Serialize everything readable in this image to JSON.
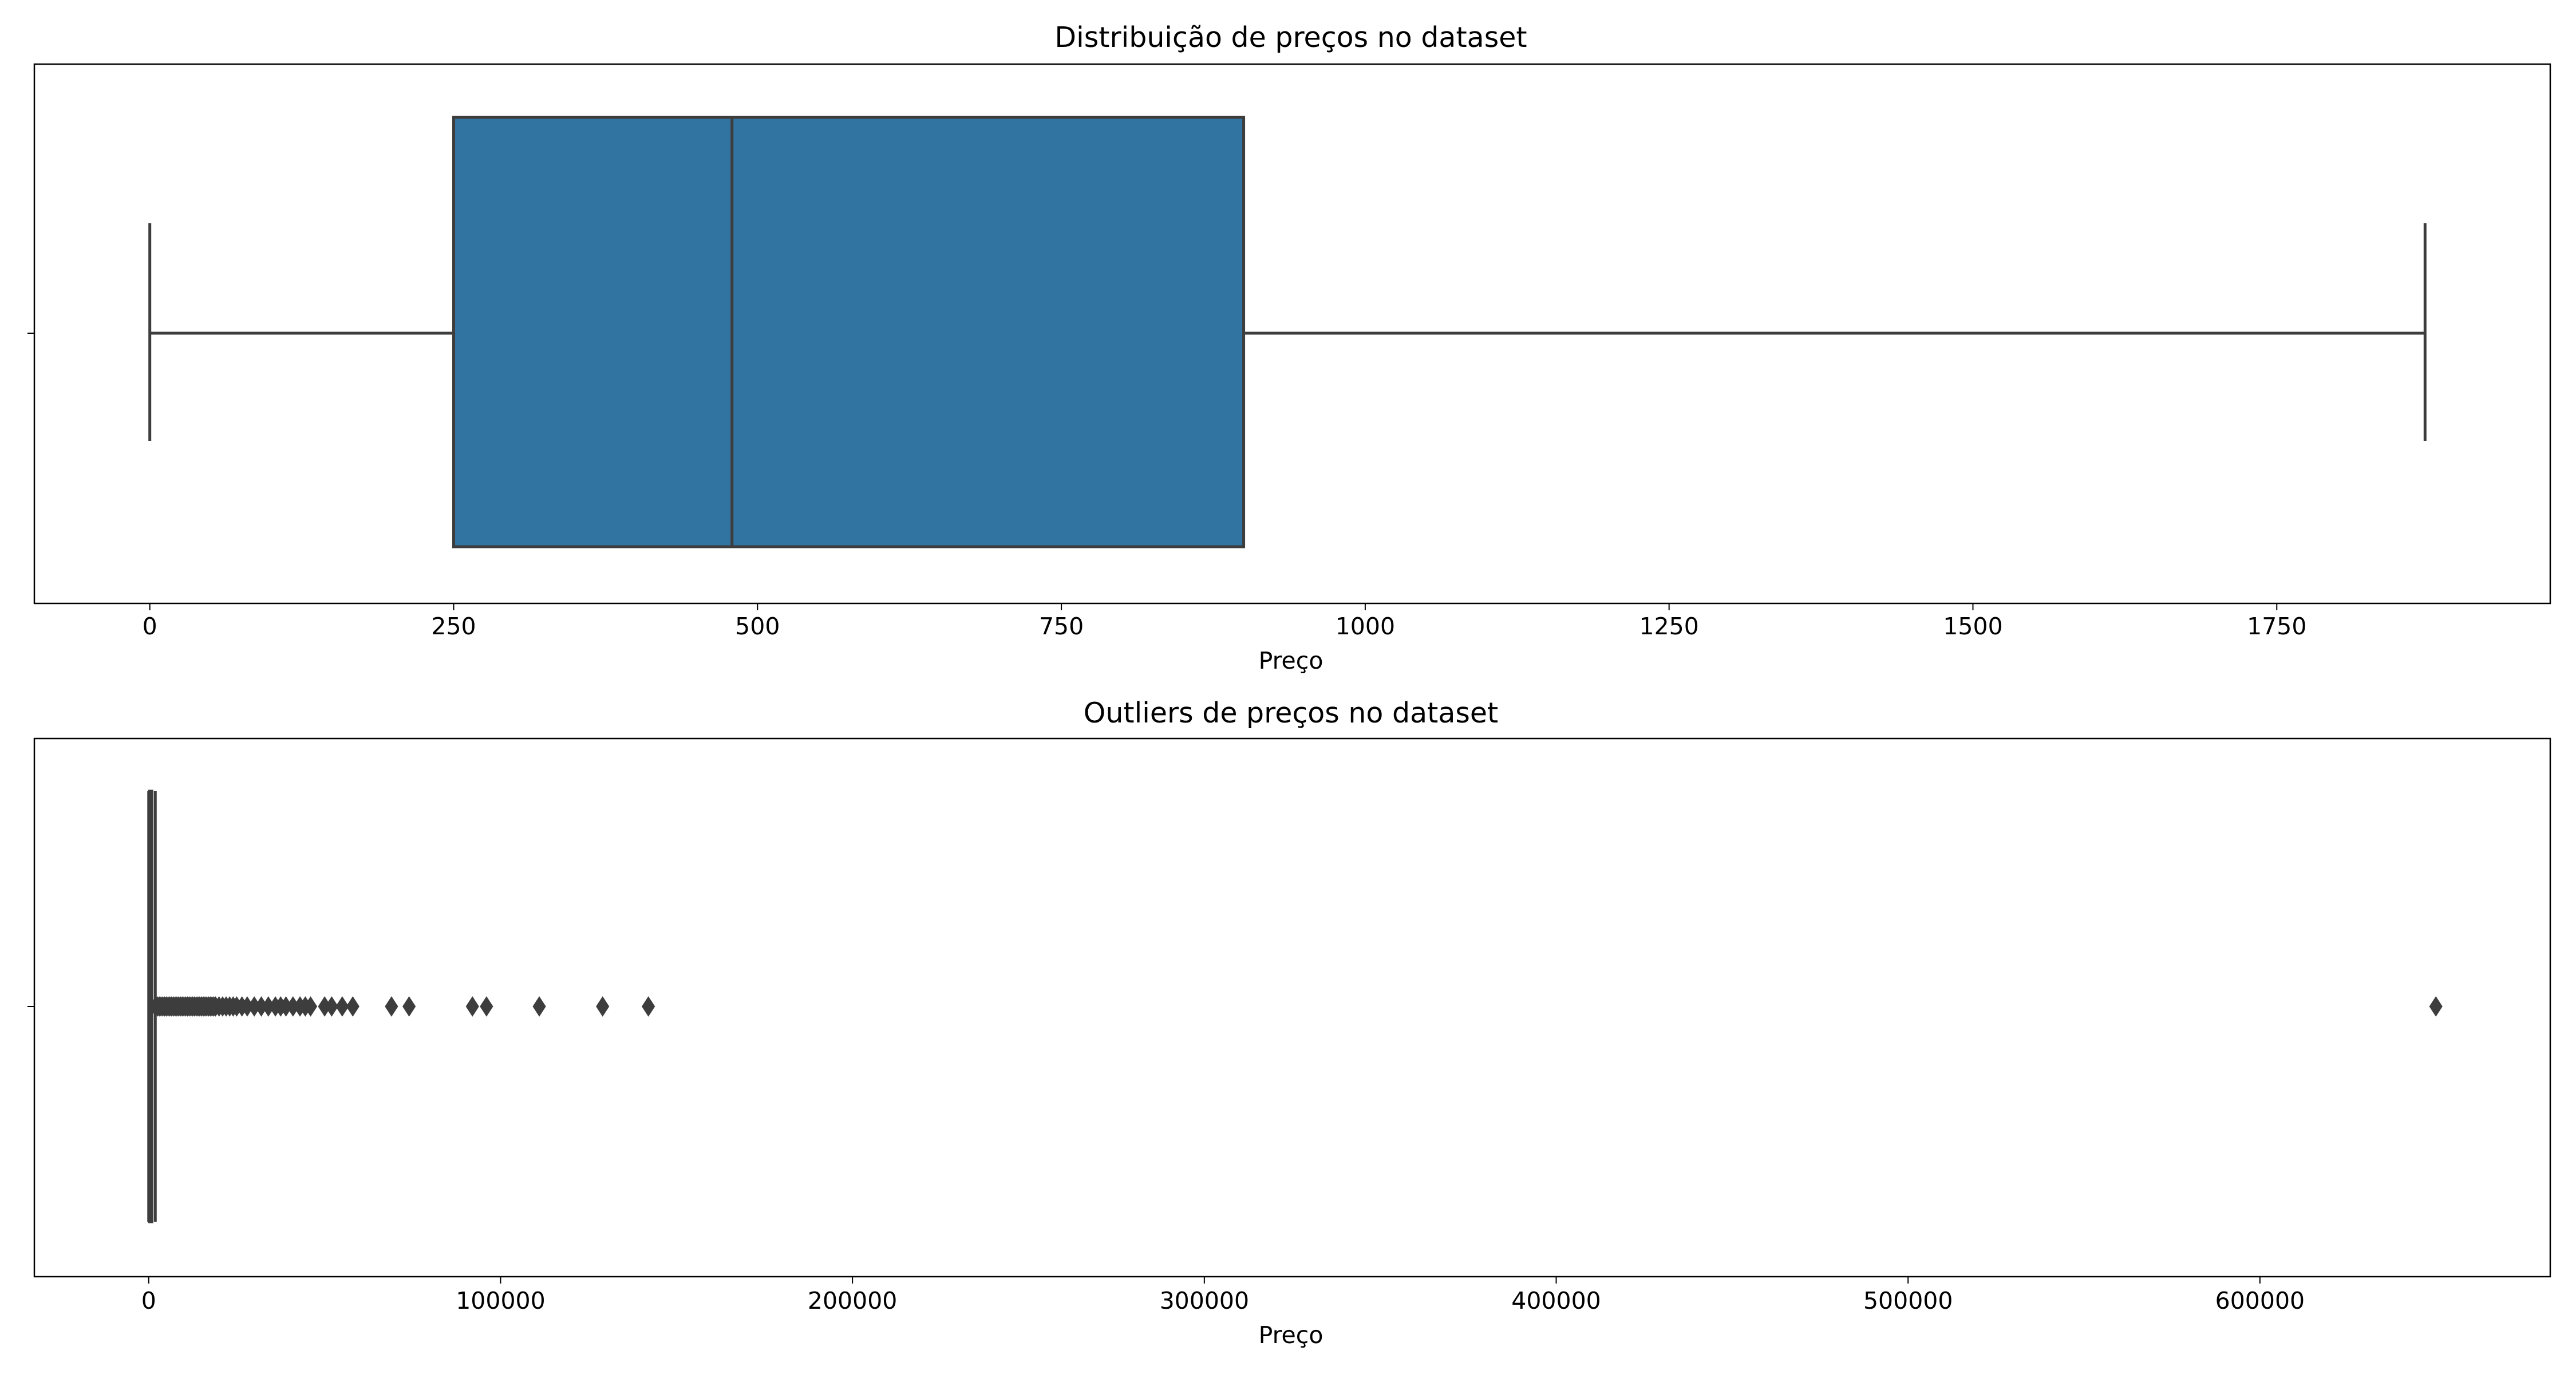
{
  "chart_data": [
    {
      "type": "boxplot",
      "title": "Distribuição de preços no dataset",
      "xlabel": "Preço",
      "ylabel": "",
      "xlim": [
        -95,
        1975
      ],
      "xticks": [
        0,
        250,
        500,
        750,
        1000,
        1250,
        1500,
        1750
      ],
      "xtick_labels": [
        "0",
        "250",
        "500",
        "750",
        "1000",
        "1250",
        "1500",
        "1750"
      ],
      "box": {
        "whisker_low": 0,
        "q1": 250,
        "median": 479,
        "q3": 900,
        "whisker_high": 1872
      },
      "outliers": [],
      "box_color": "#3274a1",
      "line_color": "#3d3d3d",
      "grid": false
    },
    {
      "type": "boxplot",
      "title": "Outliers de preços no dataset",
      "xlabel": "Preço",
      "ylabel": "",
      "xlim": [
        -32500,
        682500
      ],
      "xticks": [
        0,
        100000,
        200000,
        300000,
        400000,
        500000,
        600000
      ],
      "xtick_labels": [
        "0",
        "100000",
        "200000",
        "300000",
        "400000",
        "500000",
        "600000"
      ],
      "box": {
        "whisker_low": 0,
        "q1": 250,
        "median": 479,
        "q3": 900,
        "whisker_high": 1872
      },
      "outliers": [
        2000,
        2500,
        3000,
        3500,
        4000,
        4500,
        5000,
        5500,
        6000,
        6500,
        7000,
        7500,
        8000,
        8500,
        9000,
        9500,
        10000,
        10500,
        11000,
        11500,
        12000,
        12500,
        13000,
        13500,
        14000,
        14500,
        15000,
        15500,
        16000,
        16500,
        17000,
        17500,
        18000,
        18500,
        19000,
        20000,
        21000,
        22000,
        23000,
        24000,
        25000,
        26500,
        28000,
        30000,
        32000,
        34000,
        36000,
        37500,
        39000,
        41000,
        43000,
        44500,
        46000,
        50000,
        52000,
        55000,
        58000,
        69000,
        74000,
        92000,
        96000,
        111000,
        129000,
        142000,
        650000
      ],
      "box_color": "#3274a1",
      "line_color": "#3d3d3d",
      "grid": false
    }
  ]
}
